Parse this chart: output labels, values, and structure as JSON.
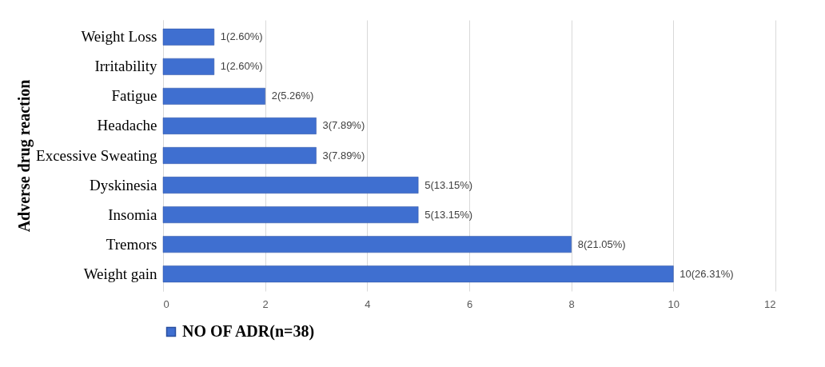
{
  "chart_data": {
    "type": "bar",
    "orientation": "horizontal",
    "ylabel": "Adverse drug reaction",
    "categories": [
      "Weight Loss",
      "Irritability",
      "Fatigue",
      "Headache",
      "Excessive Sweating",
      "Dyskinesia",
      "Insomia",
      "Tremors",
      "Weight gain"
    ],
    "series": [
      {
        "name": "NO OF ADR(n=38)",
        "color": "#3f6fd0",
        "values": [
          1,
          1,
          2,
          3,
          3,
          5,
          5,
          8,
          10
        ],
        "value_labels": [
          "1(2.60%)",
          "1(2.60%)",
          "2(5.26%)",
          "3(7.89%)",
          "3(7.89%)",
          "5(13.15%)",
          "5(13.15%)",
          "8(21.05%)",
          "10(26.31%)"
        ]
      }
    ],
    "xlim": [
      0,
      12
    ],
    "xticks": [
      0,
      2,
      4,
      6,
      8,
      10,
      12
    ],
    "grid": "x",
    "legend": "bottom"
  }
}
